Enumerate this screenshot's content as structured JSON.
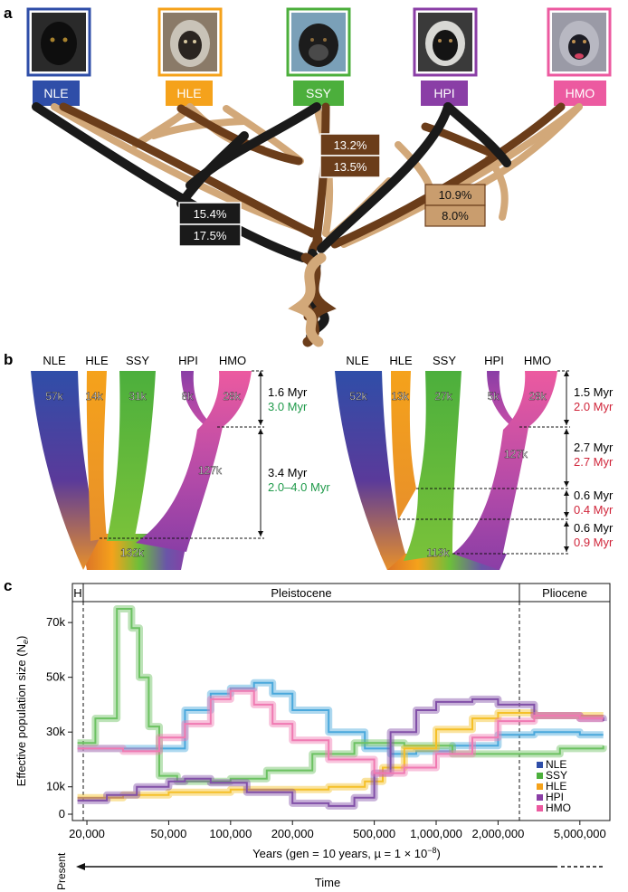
{
  "panel_a": {
    "letter": "a",
    "species": [
      {
        "code": "NLE",
        "color": "#2f4ea8"
      },
      {
        "code": "HLE",
        "color": "#f5a21b"
      },
      {
        "code": "SSY",
        "color": "#4caf3c"
      },
      {
        "code": "HPI",
        "color": "#8a3ea6"
      },
      {
        "code": "HMO",
        "color": "#ec5aa0"
      }
    ],
    "pct_boxes": [
      {
        "top": "13.2%",
        "bottom": "13.5%",
        "fill": "#6b3d1a"
      },
      {
        "top": "15.4%",
        "bottom": "17.5%",
        "fill": "#1a1a1a"
      },
      {
        "top": "10.9%",
        "bottom": "8.0%",
        "fill": "#c99d6e"
      }
    ],
    "tree_colors": {
      "black": "#1a1a1a",
      "brown": "#6b3d1a",
      "tan": "#d2a879"
    }
  },
  "panel_b": {
    "letter": "b",
    "left": {
      "species": [
        "NLE",
        "HLE",
        "SSY",
        "HPI",
        "HMO"
      ],
      "sizes": [
        "57k",
        "14k",
        "31k",
        "8k",
        "28k",
        "127k",
        "132k"
      ],
      "intervals": [
        {
          "a": "1.6 Myr",
          "b": "3.0 Myr"
        },
        {
          "a": "3.4 Myr",
          "b": "2.0–4.0 Myr"
        }
      ],
      "color_b": "#1f9a4a"
    },
    "right": {
      "species": [
        "NLE",
        "HLE",
        "SSY",
        "HPI",
        "HMO"
      ],
      "sizes": [
        "52k",
        "13k",
        "27k",
        "5k",
        "28k",
        "127k",
        "113k"
      ],
      "intervals": [
        {
          "a": "1.5 Myr",
          "b": "2.0 Myr"
        },
        {
          "a": "2.7 Myr",
          "b": "2.7 Myr"
        },
        {
          "a": "0.6 Myr",
          "b": "0.4 Myr"
        },
        {
          "a": "0.6 Myr",
          "b": "0.9 Myr"
        }
      ],
      "color_b": "#d0253a"
    }
  },
  "panel_c": {
    "letter": "c",
    "epochs": [
      {
        "label": "H"
      },
      {
        "label": "Pleistocene"
      },
      {
        "label": "Pliocene"
      }
    ],
    "ylabel": "Effective population size (N",
    "ylabel_sub": "e",
    "ylabel_end": ")",
    "xlabel": "Years (gen = 10 years, µ = 1 × 10",
    "xlabel_sup": "−8",
    "xlabel_end": ")",
    "present": "Present",
    "time": "Time",
    "legend_colors": {
      "NLE": "#2f4ea8",
      "SSY": "#4caf3c",
      "HLE": "#f5a21b",
      "HPI": "#8a3ea6",
      "HMO": "#ec5aa0"
    }
  },
  "chart_data": {
    "type": "line",
    "xscale": "log",
    "xlim": [
      17000,
      7000000
    ],
    "ylim": [
      0,
      75000
    ],
    "xticks": [
      "20,000",
      "50,000",
      "100,000",
      "200,000",
      "500,000",
      "1,000,000",
      "2,000,000",
      "5,000,000"
    ],
    "xtick_values": [
      20000,
      50000,
      100000,
      200000,
      500000,
      1000000,
      2000000,
      5000000
    ],
    "yticks": [
      "0",
      "10k",
      "30k",
      "50k",
      "70k"
    ],
    "ytick_values": [
      0,
      10000,
      30000,
      50000,
      70000
    ],
    "legend": [
      "NLE",
      "SSY",
      "HLE",
      "HPI",
      "HMO"
    ],
    "series": [
      {
        "name": "NLE",
        "color": "#4aa8dc",
        "x": [
          18000,
          25000,
          40000,
          60000,
          80000,
          100000,
          130000,
          160000,
          200000,
          300000,
          450000,
          600000,
          800000,
          1200000,
          2000000,
          3000000,
          5000000,
          6500000
        ],
        "y": [
          24000,
          24000,
          24000,
          38000,
          44000,
          46000,
          48000,
          44000,
          38000,
          30000,
          24000,
          22000,
          23000,
          25000,
          29000,
          30000,
          29000,
          29000
        ]
      },
      {
        "name": "SSY",
        "color": "#6cc262",
        "x": [
          18000,
          22000,
          28000,
          33000,
          36000,
          40000,
          45000,
          55000,
          70000,
          100000,
          150000,
          250000,
          400000,
          700000,
          1200000,
          2500000,
          4000000,
          6500000
        ],
        "y": [
          26000,
          35000,
          75000,
          68000,
          50000,
          32000,
          14000,
          12000,
          12000,
          13000,
          16000,
          22000,
          26000,
          25000,
          22000,
          22000,
          24000,
          25000
        ]
      },
      {
        "name": "HLE",
        "color": "#f5c028",
        "x": [
          18000,
          30000,
          50000,
          100000,
          200000,
          300000,
          450000,
          550000,
          700000,
          1000000,
          1500000,
          2000000,
          3000000,
          5000000,
          6500000
        ],
        "y": [
          6000,
          7000,
          8000,
          9000,
          9000,
          10000,
          12000,
          17000,
          24000,
          31000,
          35000,
          37000,
          36000,
          36000,
          36000
        ]
      },
      {
        "name": "HPI",
        "color": "#8250a8",
        "x": [
          18000,
          25000,
          35000,
          50000,
          60000,
          80000,
          120000,
          200000,
          300000,
          400000,
          500000,
          600000,
          800000,
          1000000,
          1500000,
          2000000,
          3000000,
          5000000,
          6500000
        ],
        "y": [
          5000,
          7000,
          10000,
          12000,
          13000,
          11500,
          8000,
          4000,
          3000,
          6000,
          15000,
          30000,
          38000,
          41000,
          42000,
          40000,
          36000,
          35000,
          34000
        ]
      },
      {
        "name": "HMO",
        "color": "#f07ab2",
        "x": [
          18000,
          30000,
          45000,
          60000,
          80000,
          100000,
          130000,
          160000,
          200000,
          300000,
          500000,
          700000,
          1000000,
          1500000,
          2000000,
          3000000,
          5000000,
          6500000
        ],
        "y": [
          24000,
          23000,
          28000,
          33000,
          42000,
          45000,
          40000,
          33000,
          27000,
          20000,
          15000,
          17000,
          22000,
          28000,
          34000,
          36000,
          35000,
          35000
        ]
      }
    ]
  }
}
